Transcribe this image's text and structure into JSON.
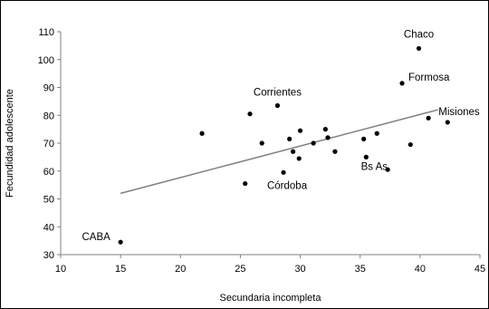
{
  "chart_data": {
    "type": "scatter",
    "xlabel": "Secundaria incompleta",
    "ylabel": "Fecundidad adolescente",
    "xlim": [
      10,
      45
    ],
    "ylim": [
      30,
      110
    ],
    "xticks": [
      10,
      15,
      20,
      25,
      30,
      35,
      40,
      45
    ],
    "yticks": [
      30,
      40,
      50,
      60,
      70,
      80,
      90,
      100,
      110
    ],
    "grid": false,
    "legend": "none",
    "point_color": "#000000",
    "trendline": {
      "x": [
        15,
        41.5
      ],
      "y": [
        52,
        82
      ],
      "color": "#808080"
    },
    "points": [
      {
        "x": 15.0,
        "y": 34.5,
        "label": "CABA"
      },
      {
        "x": 21.8,
        "y": 73.5,
        "label": ""
      },
      {
        "x": 25.4,
        "y": 55.5,
        "label": ""
      },
      {
        "x": 25.8,
        "y": 80.5,
        "label": ""
      },
      {
        "x": 26.8,
        "y": 70.0,
        "label": ""
      },
      {
        "x": 28.1,
        "y": 83.5,
        "label": "Corrientes"
      },
      {
        "x": 28.6,
        "y": 59.5,
        "label": "Córdoba"
      },
      {
        "x": 29.1,
        "y": 71.5,
        "label": ""
      },
      {
        "x": 29.4,
        "y": 67.0,
        "label": ""
      },
      {
        "x": 29.9,
        "y": 64.5,
        "label": ""
      },
      {
        "x": 30.0,
        "y": 74.5,
        "label": ""
      },
      {
        "x": 31.1,
        "y": 70.0,
        "label": ""
      },
      {
        "x": 32.1,
        "y": 75.0,
        "label": ""
      },
      {
        "x": 32.3,
        "y": 72.0,
        "label": ""
      },
      {
        "x": 32.9,
        "y": 67.0,
        "label": ""
      },
      {
        "x": 35.3,
        "y": 71.5,
        "label": ""
      },
      {
        "x": 35.5,
        "y": 65.0,
        "label": "Bs As"
      },
      {
        "x": 36.4,
        "y": 73.5,
        "label": ""
      },
      {
        "x": 37.3,
        "y": 60.5,
        "label": ""
      },
      {
        "x": 38.5,
        "y": 91.5,
        "label": "Formosa"
      },
      {
        "x": 39.2,
        "y": 69.5,
        "label": ""
      },
      {
        "x": 39.9,
        "y": 104.0,
        "label": "Chaco"
      },
      {
        "x": 40.7,
        "y": 79.0,
        "label": ""
      },
      {
        "x": 42.3,
        "y": 77.5,
        "label": "Misiones"
      }
    ]
  }
}
